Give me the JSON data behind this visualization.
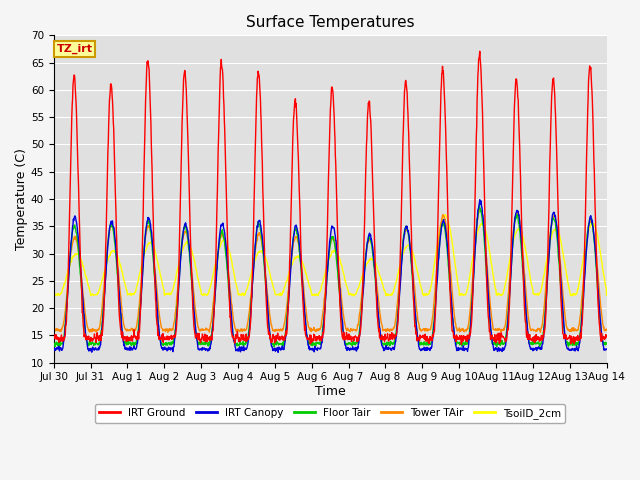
{
  "title": "Surface Temperatures",
  "xlabel": "Time",
  "ylabel": "Temperature (C)",
  "ylim": [
    10,
    70
  ],
  "yticks": [
    10,
    15,
    20,
    25,
    30,
    35,
    40,
    45,
    50,
    55,
    60,
    65,
    70
  ],
  "x_tick_labels": [
    "Jul 30",
    "Jul 31",
    "Aug 1",
    "Aug 2",
    "Aug 3",
    "Aug 4",
    "Aug 5",
    "Aug 6",
    "Aug 7",
    "Aug 8",
    "Aug 9",
    "Aug 10",
    "Aug 11",
    "Aug 12",
    "Aug 13",
    "Aug 14"
  ],
  "x_tick_positions": [
    0,
    1,
    2,
    3,
    4,
    5,
    6,
    7,
    8,
    9,
    10,
    11,
    12,
    13,
    14,
    15
  ],
  "series_colors": {
    "IRT Ground": "#ff0000",
    "IRT Canopy": "#0000dd",
    "Floor Tair": "#00cc00",
    "Tower TAir": "#ff8800",
    "TsoilD_2cm": "#ffff00"
  },
  "annotation_text": "TZ_irt",
  "annotation_box_color": "#ffff99",
  "annotation_box_edge": "#cc9900",
  "background_color": "#e0e0e0",
  "grid_color": "#ffffff",
  "title_fontsize": 11,
  "axis_label_fontsize": 9,
  "tick_label_fontsize": 7.5,
  "n_days": 15,
  "points_per_day": 96,
  "irt_peaks": [
    62.5,
    61.0,
    65.5,
    63.5,
    65.0,
    63.5,
    58.0,
    60.5,
    57.5,
    61.5,
    63.5,
    66.5,
    62.0,
    62.0,
    64.5
  ],
  "canopy_peaks": [
    36.5,
    36.0,
    36.5,
    35.5,
    35.5,
    36.0,
    35.0,
    35.0,
    33.5,
    35.0,
    36.0,
    39.5,
    38.0,
    37.5,
    36.5
  ],
  "floor_peaks": [
    35.0,
    35.5,
    36.0,
    35.0,
    34.0,
    35.5,
    34.5,
    33.0,
    33.0,
    35.0,
    35.5,
    38.5,
    37.0,
    36.5,
    36.5
  ],
  "tower_peaks": [
    33.0,
    35.0,
    35.0,
    34.0,
    33.5,
    33.5,
    33.0,
    33.0,
    32.5,
    34.5,
    37.0,
    38.0,
    37.5,
    37.0,
    36.0
  ],
  "tsoil_peaks": [
    30.0,
    30.5,
    32.0,
    32.0,
    32.5,
    30.5,
    29.5,
    30.5,
    29.0,
    31.5,
    37.0,
    35.5,
    34.5,
    34.5,
    35.5
  ],
  "irt_trough": 14.5,
  "canopy_trough": 12.5,
  "floor_trough": 13.5,
  "tower_trough": 16.0,
  "tsoil_trough": 22.5
}
